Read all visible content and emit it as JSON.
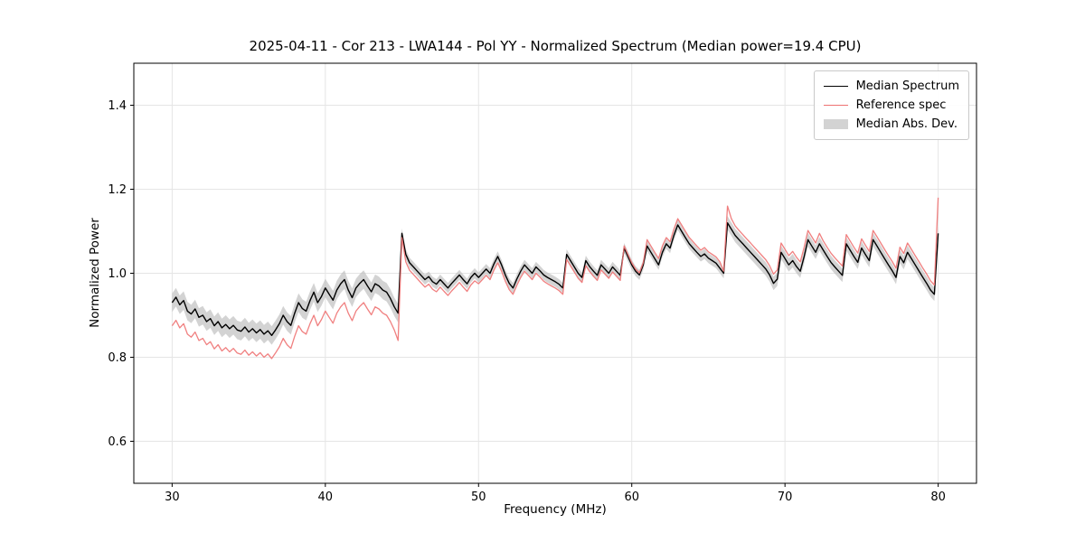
{
  "chart_data": {
    "type": "line",
    "title": "2025-04-11 - Cor 213 - LWA144 - Pol YY - Normalized Spectrum (Median power=19.4 CPU)",
    "xlabel": "Frequency (MHz)",
    "ylabel": "Normalized Power",
    "xlim": [
      27.5,
      82.5
    ],
    "ylim": [
      0.5,
      1.5
    ],
    "xticks": [
      30,
      40,
      50,
      60,
      70,
      80
    ],
    "xtick_labels": [
      "30",
      "40",
      "50",
      "60",
      "70",
      "80"
    ],
    "yticks": [
      0.6,
      0.8,
      1.0,
      1.2,
      1.4
    ],
    "ytick_labels": [
      "0.6",
      "0.8",
      "1.0",
      "1.2",
      "1.4"
    ],
    "grid": true,
    "legend_position": "upper right",
    "colors": {
      "median": "#000000",
      "reference": "#ee7272",
      "band": "#c0c0c0",
      "grid": "#e5e5e5",
      "axis": "#000000"
    },
    "x_start": 30.0,
    "x_step": 0.25,
    "series": [
      {
        "name": "Median Spectrum",
        "color": "#000000",
        "values": [
          0.93,
          0.943,
          0.925,
          0.935,
          0.91,
          0.903,
          0.915,
          0.895,
          0.9,
          0.885,
          0.892,
          0.875,
          0.885,
          0.87,
          0.878,
          0.868,
          0.876,
          0.865,
          0.862,
          0.872,
          0.86,
          0.868,
          0.858,
          0.866,
          0.855,
          0.863,
          0.852,
          0.865,
          0.88,
          0.9,
          0.885,
          0.876,
          0.905,
          0.93,
          0.916,
          0.91,
          0.935,
          0.955,
          0.93,
          0.945,
          0.965,
          0.95,
          0.936,
          0.96,
          0.975,
          0.985,
          0.96,
          0.942,
          0.965,
          0.976,
          0.985,
          0.97,
          0.956,
          0.975,
          0.97,
          0.96,
          0.955,
          0.94,
          0.92,
          0.905,
          1.095,
          1.045,
          1.025,
          1.015,
          1.005,
          0.995,
          0.985,
          0.992,
          0.98,
          0.974,
          0.985,
          0.975,
          0.965,
          0.976,
          0.986,
          0.996,
          0.985,
          0.975,
          0.99,
          1.0,
          0.99,
          1.0,
          1.01,
          1.0,
          1.022,
          1.04,
          1.02,
          0.996,
          0.976,
          0.965,
          0.986,
          1.005,
          1.02,
          1.01,
          1.0,
          1.015,
          1.006,
          0.996,
          0.99,
          0.985,
          0.98,
          0.974,
          0.965,
          1.045,
          1.03,
          1.015,
          1.0,
          0.99,
          1.03,
          1.016,
          1.005,
          0.995,
          1.02,
          1.01,
          1.0,
          1.015,
          1.005,
          0.995,
          1.06,
          1.04,
          1.02,
          1.005,
          0.996,
          1.02,
          1.065,
          1.05,
          1.035,
          1.02,
          1.05,
          1.07,
          1.06,
          1.09,
          1.115,
          1.1,
          1.085,
          1.07,
          1.06,
          1.05,
          1.04,
          1.046,
          1.036,
          1.03,
          1.024,
          1.012,
          1.0,
          1.12,
          1.105,
          1.09,
          1.08,
          1.07,
          1.06,
          1.05,
          1.04,
          1.03,
          1.02,
          1.01,
          0.996,
          0.976,
          0.986,
          1.05,
          1.035,
          1.02,
          1.03,
          1.016,
          1.005,
          1.04,
          1.08,
          1.065,
          1.05,
          1.07,
          1.055,
          1.04,
          1.026,
          1.015,
          1.005,
          0.995,
          1.07,
          1.055,
          1.04,
          1.026,
          1.06,
          1.045,
          1.03,
          1.08,
          1.065,
          1.05,
          1.035,
          1.02,
          1.006,
          0.99,
          1.04,
          1.025,
          1.05,
          1.035,
          1.02,
          1.005,
          0.99,
          0.976,
          0.96,
          0.95,
          1.095
        ]
      },
      {
        "name": "Reference spec",
        "color": "#ee7272",
        "values": [
          0.875,
          0.888,
          0.87,
          0.88,
          0.855,
          0.848,
          0.86,
          0.84,
          0.845,
          0.83,
          0.837,
          0.82,
          0.83,
          0.815,
          0.823,
          0.813,
          0.821,
          0.81,
          0.807,
          0.817,
          0.805,
          0.813,
          0.803,
          0.811,
          0.8,
          0.808,
          0.797,
          0.81,
          0.825,
          0.845,
          0.83,
          0.821,
          0.85,
          0.875,
          0.861,
          0.855,
          0.88,
          0.9,
          0.875,
          0.89,
          0.91,
          0.895,
          0.881,
          0.905,
          0.92,
          0.93,
          0.905,
          0.887,
          0.91,
          0.921,
          0.93,
          0.915,
          0.901,
          0.92,
          0.915,
          0.905,
          0.9,
          0.885,
          0.865,
          0.84,
          1.085,
          1.027,
          1.007,
          0.997,
          0.987,
          0.977,
          0.967,
          0.974,
          0.962,
          0.956,
          0.967,
          0.957,
          0.947,
          0.958,
          0.968,
          0.978,
          0.967,
          0.957,
          0.972,
          0.982,
          0.975,
          0.985,
          0.995,
          0.985,
          1.007,
          1.025,
          1.005,
          0.981,
          0.961,
          0.95,
          0.971,
          0.99,
          1.005,
          0.995,
          0.985,
          1.0,
          0.991,
          0.981,
          0.975,
          0.97,
          0.965,
          0.959,
          0.95,
          1.033,
          1.018,
          1.003,
          0.988,
          0.978,
          1.018,
          1.004,
          0.993,
          0.983,
          1.008,
          0.998,
          0.988,
          1.003,
          0.993,
          0.983,
          1.065,
          1.045,
          1.025,
          1.01,
          1.001,
          1.025,
          1.08,
          1.065,
          1.05,
          1.035,
          1.065,
          1.085,
          1.075,
          1.105,
          1.13,
          1.115,
          1.1,
          1.085,
          1.075,
          1.065,
          1.055,
          1.061,
          1.051,
          1.045,
          1.039,
          1.027,
          1.005,
          1.16,
          1.13,
          1.113,
          1.102,
          1.092,
          1.082,
          1.072,
          1.062,
          1.052,
          1.042,
          1.032,
          1.018,
          0.998,
          1.008,
          1.072,
          1.057,
          1.042,
          1.052,
          1.038,
          1.027,
          1.062,
          1.102,
          1.087,
          1.072,
          1.095,
          1.077,
          1.062,
          1.048,
          1.037,
          1.027,
          1.017,
          1.092,
          1.077,
          1.062,
          1.048,
          1.082,
          1.067,
          1.052,
          1.102,
          1.087,
          1.072,
          1.057,
          1.042,
          1.028,
          1.012,
          1.062,
          1.047,
          1.072,
          1.057,
          1.042,
          1.027,
          1.012,
          0.998,
          0.982,
          0.972,
          1.18
        ]
      }
    ],
    "band": {
      "name": "Median Abs. Dev.",
      "color": "#c0c0c0",
      "opacity": 0.7,
      "around": "Median Spectrum",
      "half_width_segments": [
        {
          "from": 27.5,
          "to": 44.9,
          "value": 0.022
        },
        {
          "from": 44.9,
          "to": 66.0,
          "value": 0.012
        },
        {
          "from": 66.0,
          "to": 82.5,
          "value": 0.016
        }
      ]
    }
  }
}
